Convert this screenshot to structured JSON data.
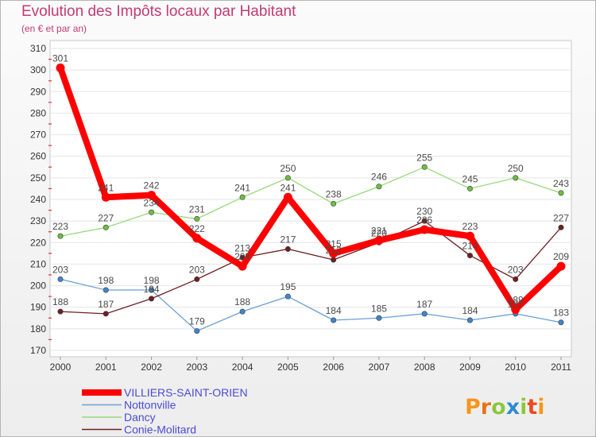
{
  "chart_data": {
    "type": "line",
    "title": "Evolution des Impôts locaux par Habitant",
    "subtitle": "(en € et par an)",
    "x": [
      "2000",
      "2001",
      "2002",
      "2003",
      "2004",
      "2005",
      "2006",
      "2007",
      "2008",
      "2009",
      "2010",
      "2011"
    ],
    "ylim": [
      170,
      310
    ],
    "yticks": [
      170,
      180,
      190,
      200,
      210,
      220,
      230,
      240,
      250,
      260,
      270,
      280,
      290,
      300,
      310
    ],
    "grid": true,
    "legend_position": "bottom-left",
    "series": [
      {
        "name": "VILLIERS-SAINT-ORIEN",
        "color": "#ff0000",
        "marker_color": "#ff0000",
        "values": [
          301,
          241,
          242,
          222,
          209,
          241,
          215,
          221,
          226,
          223,
          189,
          209
        ]
      },
      {
        "name": "Nottonville",
        "color": "#6a9fd4",
        "marker_color": "#3f86cc",
        "values": [
          203,
          198,
          198,
          179,
          188,
          195,
          184,
          185,
          187,
          184,
          187,
          183
        ]
      },
      {
        "name": "Dancy",
        "color": "#97d97a",
        "marker_color": "#6cc043",
        "values": [
          223,
          227,
          234,
          231,
          241,
          250,
          238,
          246,
          255,
          245,
          250,
          243
        ]
      },
      {
        "name": "Conie-Molitard",
        "color": "#6e1f23",
        "marker_color": "#6e1f23",
        "values": [
          188,
          187,
          194,
          203,
          213,
          217,
          212,
          220,
          230,
          214,
          203,
          227
        ]
      }
    ]
  },
  "legend_text_color": "#4b4bd6",
  "logo": {
    "text": "Proxiti",
    "colors": [
      "#f7941d",
      "#e8731a",
      "#8dc63f",
      "#2e8bd0",
      "#8dc63f",
      "#ec4a24",
      "#f7941d"
    ]
  }
}
